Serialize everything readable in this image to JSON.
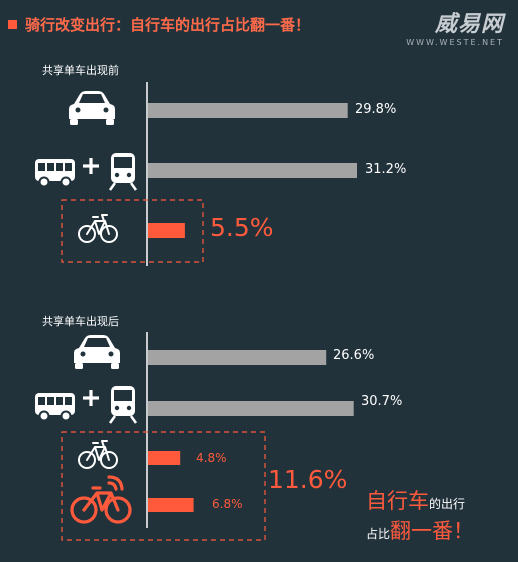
{
  "title": "骑行改变出行：自行车的出行占比翻一番！",
  "watermark": {
    "logo": "威易网",
    "url": "WWW.WESTE.NET"
  },
  "sections": [
    {
      "label": "共享单车出现前"
    },
    {
      "label": "共享单车出现后"
    }
  ],
  "icons": [
    "car-icon",
    "bus-icon",
    "plus-icon",
    "train-icon",
    "bicycle-icon",
    "mobike-icon"
  ],
  "chart_data": [
    {
      "type": "bar",
      "orientation": "horizontal",
      "title": "共享单车出现前",
      "categories": [
        "car",
        "bus+train",
        "bicycle"
      ],
      "values": [
        29.8,
        31.2,
        5.5
      ],
      "labels": [
        "29.8%",
        "31.2%",
        "5.5%"
      ]
    },
    {
      "type": "bar",
      "orientation": "horizontal",
      "title": "共享单车出现后",
      "categories": [
        "car",
        "bus+train",
        "bicycle",
        "shared-bike"
      ],
      "values": [
        26.6,
        30.7,
        4.8,
        6.8
      ],
      "labels": [
        "26.6%",
        "30.7%",
        "4.8%",
        "6.8%"
      ],
      "group_total_label": "11.6%"
    }
  ],
  "conclusion": {
    "part1": "自行车",
    "part2": "的出行",
    "part3": "占比",
    "part4": "翻一番！"
  },
  "colors": {
    "background": "#21323b",
    "accent": "#ff5a3c",
    "bar_gray": "#a3a3a3",
    "white": "#ffffff"
  }
}
